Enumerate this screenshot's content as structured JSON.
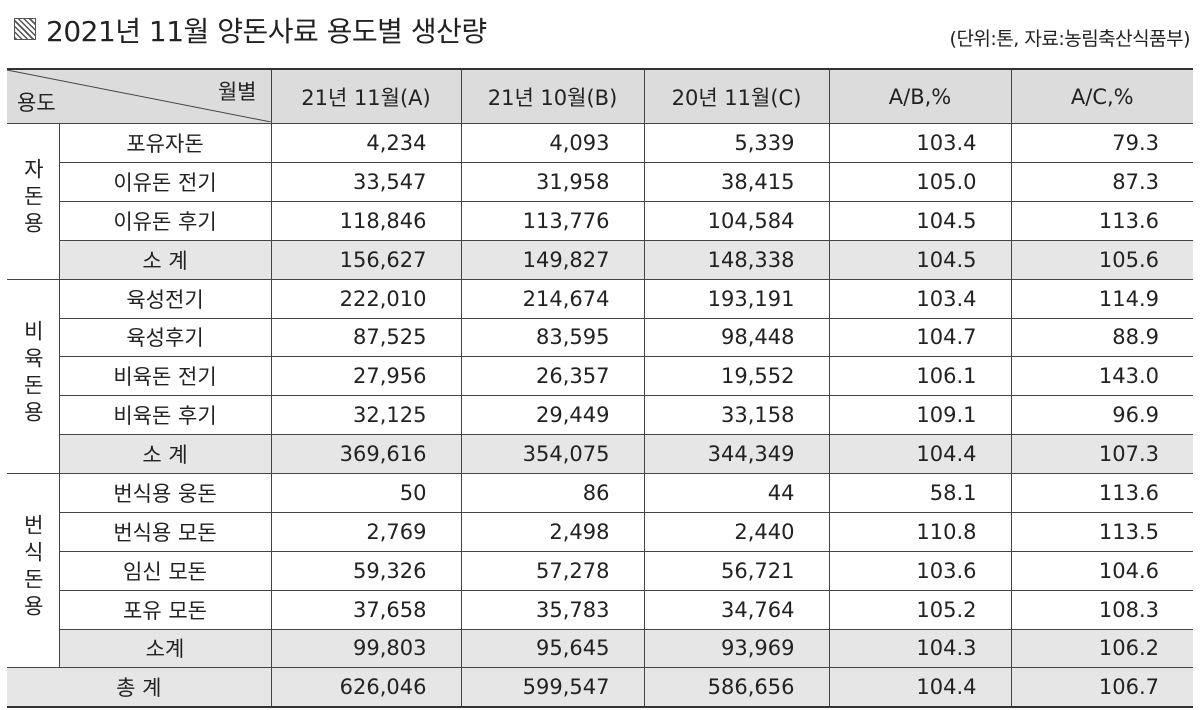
{
  "title": "2021년 11월 양돈사료 용도별 생산량",
  "source": "(단위:톤,  자료:농림축산식품부)",
  "header": {
    "corner_top": "월별",
    "corner_bottom": "용도",
    "columns": [
      "21년 11월(A)",
      "21년 10월(B)",
      "20년 11월(C)",
      "A/B,%",
      "A/C,%"
    ]
  },
  "groups": [
    {
      "name": "자돈용",
      "rows": [
        {
          "label": "포유자돈",
          "values": [
            "4,234",
            "4,093",
            "5,339",
            "103.4",
            "79.3"
          ]
        },
        {
          "label": "이유돈 전기",
          "values": [
            "33,547",
            "31,958",
            "38,415",
            "105.0",
            "87.3"
          ]
        },
        {
          "label": "이유돈 후기",
          "values": [
            "118,846",
            "113,776",
            "104,584",
            "104.5",
            "113.6"
          ]
        },
        {
          "label": "소 계",
          "values": [
            "156,627",
            "149,827",
            "148,338",
            "104.5",
            "105.6"
          ]
        }
      ]
    },
    {
      "name": "비육돈용",
      "rows": [
        {
          "label": "육성전기",
          "values": [
            "222,010",
            "214,674",
            "193,191",
            "103.4",
            "114.9"
          ]
        },
        {
          "label": "육성후기",
          "values": [
            "87,525",
            "83,595",
            "98,448",
            "104.7",
            "88.9"
          ]
        },
        {
          "label": "비육돈 전기",
          "values": [
            "27,956",
            "26,357",
            "19,552",
            "106.1",
            "143.0"
          ]
        },
        {
          "label": "비육돈 후기",
          "values": [
            "32,125",
            "29,449",
            "33,158",
            "109.1",
            "96.9"
          ]
        },
        {
          "label": "소 계",
          "values": [
            "369,616",
            "354,075",
            "344,349",
            "104.4",
            "107.3"
          ]
        }
      ]
    },
    {
      "name": "번식돈용",
      "rows": [
        {
          "label": "번식용 웅돈",
          "values": [
            "50",
            "86",
            "44",
            "58.1",
            "113.6"
          ]
        },
        {
          "label": "번식용 모돈",
          "values": [
            "2,769",
            "2,498",
            "2,440",
            "110.8",
            "113.5"
          ]
        },
        {
          "label": "임신 모돈",
          "values": [
            "59,326",
            "57,278",
            "56,721",
            "103.6",
            "104.6"
          ]
        },
        {
          "label": "포유 모돈",
          "values": [
            "37,658",
            "35,783",
            "34,764",
            "105.2",
            "108.3"
          ]
        },
        {
          "label": "소계",
          "values": [
            "99,803",
            "95,645",
            "93,969",
            "104.3",
            "106.2"
          ]
        }
      ]
    }
  ],
  "total": {
    "label": "총 계",
    "values": [
      "626,046",
      "599,547",
      "586,656",
      "104.4",
      "106.7"
    ]
  }
}
